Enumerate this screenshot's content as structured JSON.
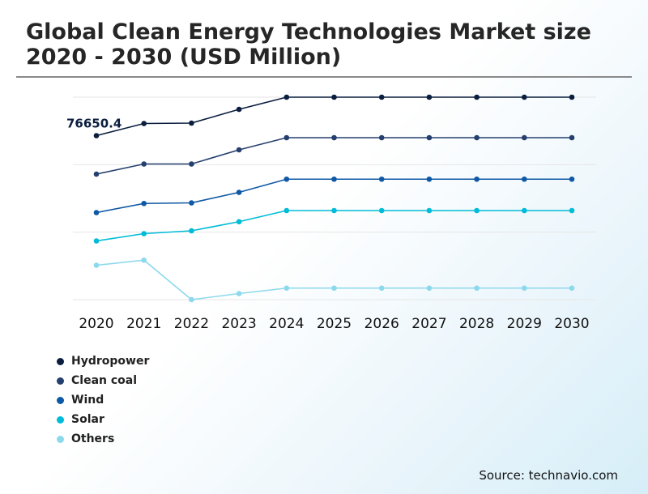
{
  "chart_data": {
    "type": "line",
    "title": "Global Clean Energy Technologies Market size 2020 - 2030 (USD Million)",
    "xlabel": "",
    "ylabel": "",
    "categories": [
      "2020",
      "2021",
      "2022",
      "2023",
      "2024",
      "2025",
      "2026",
      "2027",
      "2028",
      "2029",
      "2030"
    ],
    "ylim": [
      0,
      100
    ],
    "grid": true,
    "legend_position": "bottom-left",
    "annotation": {
      "label": "76650.4",
      "series": "Hydropower",
      "category": "2020"
    },
    "series": [
      {
        "name": "Hydropower",
        "color": "#0b1e3f",
        "values": [
          81,
          87,
          87.2,
          94,
          100,
          100,
          100,
          100,
          100,
          100,
          100
        ]
      },
      {
        "name": "Clean coal",
        "color": "#253f6e",
        "values": [
          62,
          67,
          67,
          74,
          80,
          80,
          80,
          80,
          80,
          80,
          80
        ]
      },
      {
        "name": "Wind",
        "color": "#0e58a5",
        "values": [
          43,
          47.5,
          47.8,
          53,
          59.5,
          59.5,
          59.5,
          59.5,
          59.5,
          59.5,
          59.5
        ]
      },
      {
        "name": "Solar",
        "color": "#00bcd8",
        "values": [
          29,
          32.6,
          34,
          38.5,
          44,
          44,
          44,
          44,
          44,
          44,
          44
        ]
      },
      {
        "name": "Others",
        "color": "#8dd9ec",
        "values": [
          17,
          19.5,
          0,
          3,
          5.7,
          5.7,
          5.7,
          5.7,
          5.7,
          5.7,
          5.7
        ]
      }
    ]
  },
  "source": "Source: technavio.com"
}
